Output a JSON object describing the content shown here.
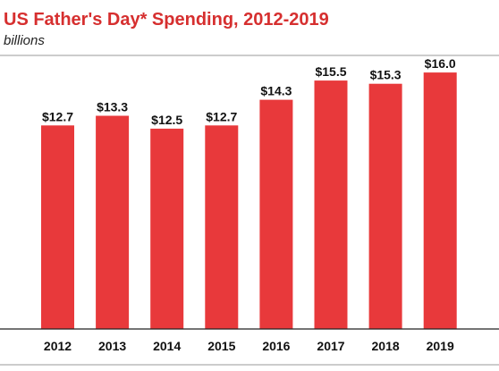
{
  "colors": {
    "bar": "#e8393b",
    "title": "#d62f2f",
    "text": "#111111",
    "rule": "#999999",
    "baseline": "#222222"
  },
  "chart_data": {
    "type": "bar",
    "title": "US Father's Day* Spending, 2012-2019",
    "subtitle": "billions",
    "xlabel": "",
    "ylabel": "",
    "categories": [
      "2012",
      "2013",
      "2014",
      "2015",
      "2016",
      "2017",
      "2018",
      "2019"
    ],
    "values": [
      12.7,
      13.3,
      12.5,
      12.7,
      14.3,
      15.5,
      15.3,
      16.0
    ],
    "data_labels": [
      "$12.7",
      "$13.3",
      "$12.5",
      "$12.7",
      "$14.3",
      "$15.5",
      "$15.3",
      "$16.0"
    ],
    "ylim": [
      0,
      16.0
    ],
    "grid": false,
    "legend": "none"
  }
}
